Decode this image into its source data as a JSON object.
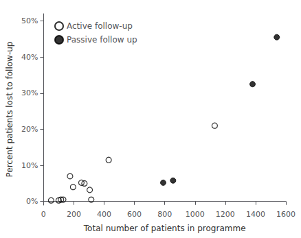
{
  "chart_data": {
    "type": "scatter",
    "xlabel": "Total number of patients in programme",
    "ylabel": "Percent patients lost to follow-up",
    "series": [
      {
        "name": "Active follow-up",
        "color": "black",
        "marker": "open_circle",
        "x": [
          50,
          100,
          115,
          130,
          175,
          195,
          250,
          270,
          305,
          315,
          430,
          1130
        ],
        "values": [
          0.3,
          0.3,
          0.5,
          0.5,
          7.0,
          4.0,
          5.2,
          5.0,
          3.2,
          0.5,
          11.5,
          21.0
        ]
      },
      {
        "name": "Passive follow up",
        "color": "black",
        "marker": "circle",
        "x": [
          790,
          855,
          1380,
          1540
        ],
        "values": [
          5.2,
          5.8,
          32.5,
          45.5
        ]
      }
    ],
    "xlim": [
      0,
      1600
    ],
    "ylim": [
      -1,
      52
    ],
    "xticks": [
      0,
      200,
      400,
      600,
      800,
      1000,
      1200,
      1400,
      1600
    ],
    "yticks": [
      {
        "value": 0,
        "label": "0%"
      },
      {
        "value": 10,
        "label": "10%"
      },
      {
        "value": 20,
        "label": "20%"
      },
      {
        "value": 30,
        "label": "30%"
      },
      {
        "value": 40,
        "label": "40%"
      },
      {
        "value": 50,
        "label": "50%"
      }
    ],
    "grid": false,
    "legend": "upper left"
  }
}
